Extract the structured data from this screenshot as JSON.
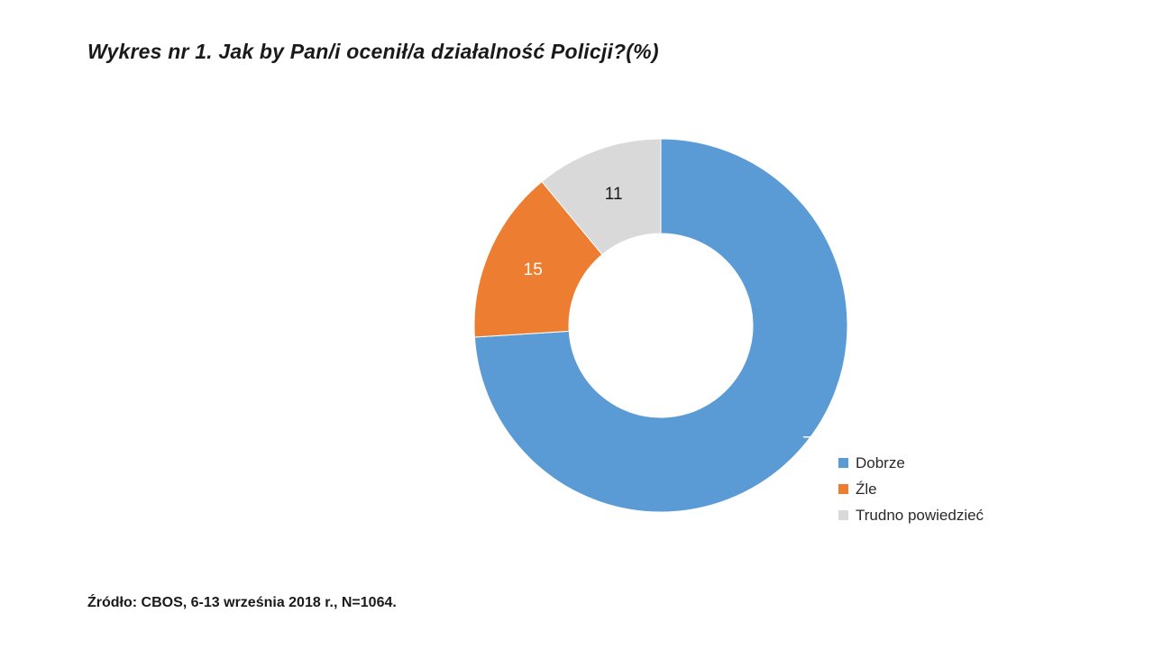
{
  "title": "Wykres nr 1.  Jak by Pan/i ocenił/a działalność Policji?(%)",
  "source": "Źródło: CBOS, 6-13 września 2018 r., N=1064.",
  "chart_data": {
    "type": "pie",
    "variant": "donut",
    "title": "Wykres nr 1.  Jak by Pan/i ocenił/a działalność Policji?(%)",
    "unit": "%",
    "slices": [
      {
        "name": "Dobrze",
        "value": 74,
        "label": "74",
        "color": "#5b9bd5",
        "label_color": "#ffffff"
      },
      {
        "name": "Źle",
        "value": 15,
        "label": "15",
        "color": "#ed7d31",
        "label_color": "#ffffff"
      },
      {
        "name": "Trudno powiedzieć",
        "value": 11,
        "label": "11",
        "color": "#d9d9d9",
        "label_color": "#1a1a1a"
      }
    ],
    "legend_position": "bottom-right"
  }
}
